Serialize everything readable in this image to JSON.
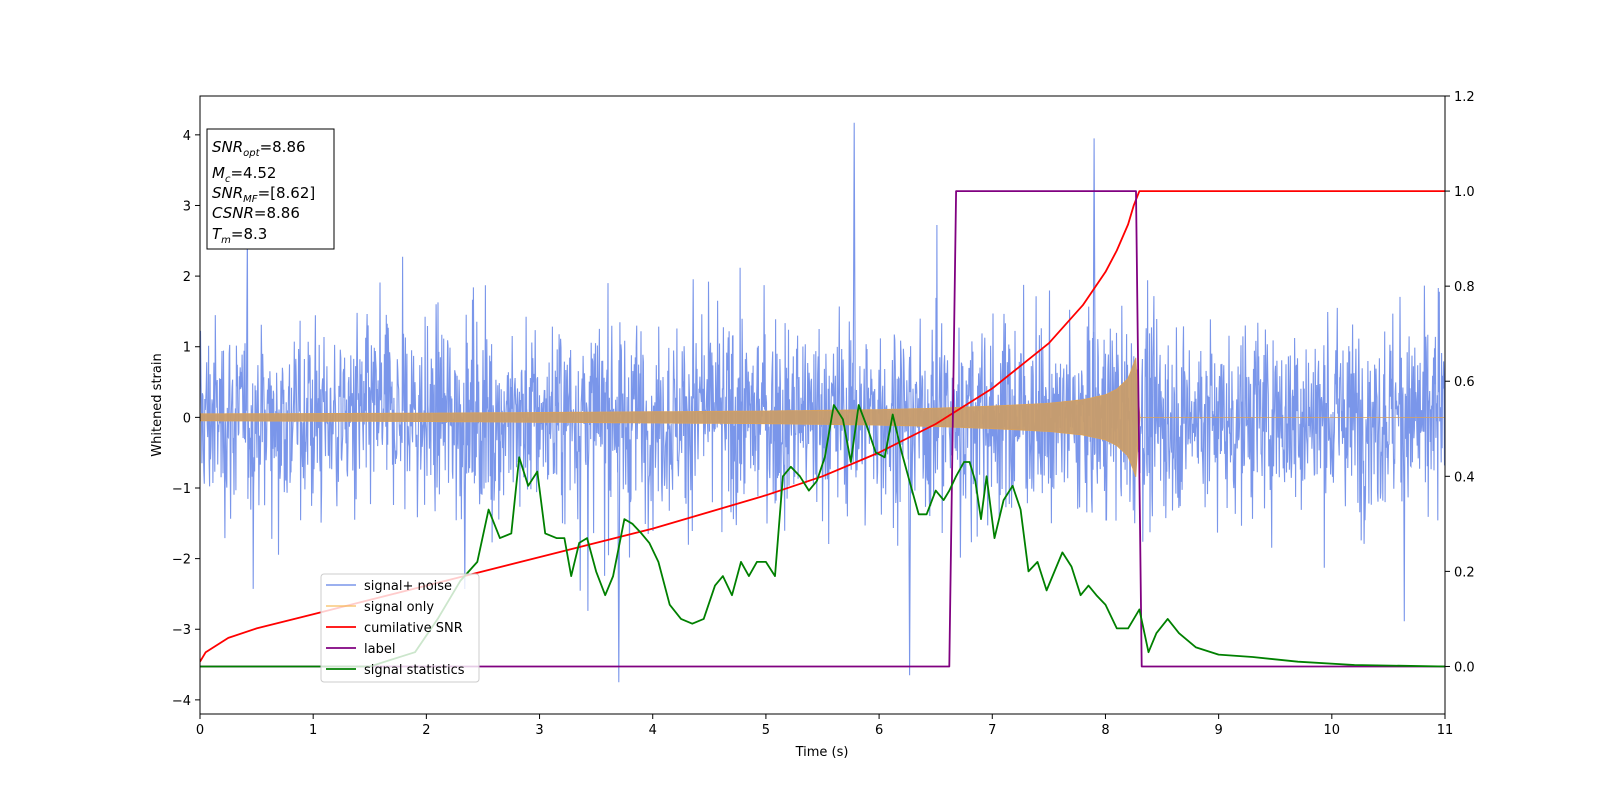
{
  "chart_data": {
    "type": "line",
    "xlabel": "Time (s)",
    "ylabel": "Whitened strain",
    "xlim": [
      0,
      11
    ],
    "ylim": [
      -4.2,
      4.55
    ],
    "ylim_right": [
      -0.1,
      1.2
    ],
    "x_ticks": [
      0,
      1,
      2,
      3,
      4,
      5,
      6,
      7,
      8,
      9,
      10,
      11
    ],
    "y_ticks": [
      -4,
      -3,
      -2,
      -1,
      0,
      1,
      2,
      3,
      4
    ],
    "y_ticks_right": [
      0.0,
      0.2,
      0.4,
      0.6,
      0.8,
      1.0,
      1.2
    ],
    "x_tick_labels": [
      "0",
      "1",
      "2",
      "3",
      "4",
      "5",
      "6",
      "7",
      "8",
      "9",
      "10",
      "11"
    ],
    "y_tick_labels": [
      "−4",
      "−3",
      "−2",
      "−1",
      "0",
      "1",
      "2",
      "3",
      "4"
    ],
    "y_tick_labels_right": [
      "0.0",
      "0.2",
      "0.4",
      "0.6",
      "0.8",
      "1.0",
      "1.2"
    ],
    "grid": false,
    "legend_position": "lower-left",
    "annotation": {
      "snr_opt": {
        "name": "SNR",
        "sub": "opt",
        "value": "=8.86"
      },
      "mc": {
        "name": "M",
        "sub": "c",
        "value": "=4.52"
      },
      "snr_mf": {
        "name": "SNR",
        "sub": "MF",
        "value": "=[8.62]"
      },
      "csnr": {
        "name": "CSNR",
        "value": "=8.86"
      },
      "tm": {
        "name": "T",
        "sub": "m",
        "value": "=8.3"
      }
    },
    "series": [
      {
        "name": "signal+ noise",
        "axis": "left",
        "color": "#4169e1",
        "description_values": "white-noise band roughly ±1.5 with spikes up to about 4.2 (x≈5.8) and down to about -3.75 (x≈3.7)",
        "envelope": {
          "typical": 1.5,
          "max": 4.17,
          "min": -3.75
        }
      },
      {
        "name": "signal only",
        "axis": "left",
        "color": "#f5b041",
        "envelope_x": [
          0,
          1,
          2,
          3,
          4,
          5,
          6,
          6.5,
          7,
          7.5,
          7.8,
          8.0,
          8.1,
          8.2,
          8.27,
          8.3,
          11
        ],
        "envelope_y": [
          0.05,
          0.055,
          0.06,
          0.07,
          0.08,
          0.09,
          0.11,
          0.13,
          0.16,
          0.2,
          0.25,
          0.32,
          0.4,
          0.55,
          0.85,
          0.0,
          0.0
        ]
      },
      {
        "name": "cumilative SNR",
        "axis": "right",
        "color": "#ff0000",
        "x": [
          0,
          0.05,
          0.25,
          0.5,
          1,
          1.5,
          2,
          2.5,
          3,
          3.5,
          4,
          4.5,
          5,
          5.5,
          6,
          6.5,
          7,
          7.5,
          7.8,
          8.0,
          8.1,
          8.2,
          8.25,
          8.3,
          11
        ],
        "y": [
          0.01,
          0.03,
          0.06,
          0.08,
          0.11,
          0.14,
          0.17,
          0.2,
          0.23,
          0.26,
          0.29,
          0.325,
          0.36,
          0.4,
          0.45,
          0.51,
          0.585,
          0.68,
          0.76,
          0.83,
          0.875,
          0.93,
          0.97,
          1.0,
          1.0
        ]
      },
      {
        "name": "label",
        "axis": "right",
        "color": "#800080",
        "x": [
          0,
          6.62,
          6.68,
          8.27,
          8.32,
          11
        ],
        "y": [
          0,
          0,
          1,
          1,
          0,
          0
        ]
      },
      {
        "name": "signal statistics",
        "axis": "right",
        "color": "#008000",
        "x": [
          0,
          1.5,
          1.9,
          2.1,
          2.3,
          2.45,
          2.55,
          2.65,
          2.75,
          2.82,
          2.9,
          2.98,
          3.05,
          3.15,
          3.22,
          3.28,
          3.35,
          3.42,
          3.5,
          3.58,
          3.65,
          3.75,
          3.82,
          3.9,
          3.97,
          4.05,
          4.15,
          4.25,
          4.35,
          4.45,
          4.55,
          4.62,
          4.7,
          4.78,
          4.85,
          4.92,
          5.0,
          5.08,
          5.15,
          5.22,
          5.3,
          5.38,
          5.45,
          5.52,
          5.6,
          5.68,
          5.75,
          5.82,
          5.9,
          5.97,
          6.05,
          6.12,
          6.2,
          6.28,
          6.35,
          6.42,
          6.5,
          6.57,
          6.62,
          6.68,
          6.75,
          6.8,
          6.85,
          6.9,
          6.95,
          7.02,
          7.1,
          7.18,
          7.25,
          7.32,
          7.4,
          7.48,
          7.55,
          7.62,
          7.7,
          7.78,
          7.85,
          7.92,
          8.0,
          8.1,
          8.2,
          8.3,
          8.38,
          8.45,
          8.55,
          8.65,
          8.8,
          9.0,
          9.3,
          9.7,
          10.2,
          11
        ],
        "y": [
          0,
          0.0,
          0.03,
          0.1,
          0.18,
          0.22,
          0.33,
          0.27,
          0.28,
          0.44,
          0.38,
          0.41,
          0.28,
          0.27,
          0.27,
          0.19,
          0.26,
          0.27,
          0.2,
          0.15,
          0.19,
          0.31,
          0.3,
          0.28,
          0.26,
          0.22,
          0.13,
          0.1,
          0.09,
          0.1,
          0.17,
          0.19,
          0.15,
          0.22,
          0.19,
          0.22,
          0.22,
          0.19,
          0.4,
          0.42,
          0.4,
          0.37,
          0.39,
          0.44,
          0.55,
          0.52,
          0.43,
          0.55,
          0.5,
          0.45,
          0.44,
          0.53,
          0.45,
          0.38,
          0.32,
          0.32,
          0.37,
          0.35,
          0.37,
          0.4,
          0.43,
          0.43,
          0.39,
          0.31,
          0.4,
          0.27,
          0.35,
          0.38,
          0.33,
          0.2,
          0.22,
          0.16,
          0.2,
          0.24,
          0.21,
          0.15,
          0.17,
          0.15,
          0.13,
          0.08,
          0.08,
          0.12,
          0.03,
          0.07,
          0.1,
          0.07,
          0.04,
          0.025,
          0.02,
          0.01,
          0.003,
          0.0
        ]
      }
    ]
  }
}
